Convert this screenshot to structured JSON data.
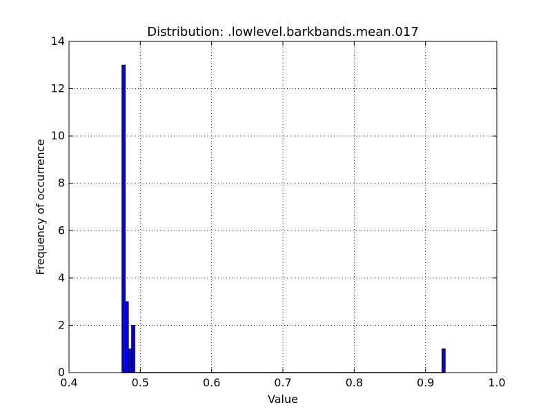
{
  "chart_data": {
    "type": "bar",
    "title": "Distribution: .lowlevel.barkbands.mean.017",
    "xlabel": "Value",
    "ylabel": "Frequency of occurrence",
    "xlim": [
      0.4,
      1.0
    ],
    "ylim": [
      0,
      14
    ],
    "xticks": [
      "0.4",
      "0.5",
      "0.6",
      "0.7",
      "0.8",
      "0.9",
      "1.0"
    ],
    "yticks": [
      "0",
      "2",
      "4",
      "6",
      "8",
      "10",
      "12",
      "14"
    ],
    "grid": true,
    "bar_color": "#0000ff",
    "bin_width": 0.00451,
    "bins": [
      {
        "x": 0.4743,
        "value": 13
      },
      {
        "x": 0.4788,
        "value": 3
      },
      {
        "x": 0.4833,
        "value": 1
      },
      {
        "x": 0.4878,
        "value": 2
      },
      {
        "x": 0.9231,
        "value": 1
      }
    ]
  }
}
